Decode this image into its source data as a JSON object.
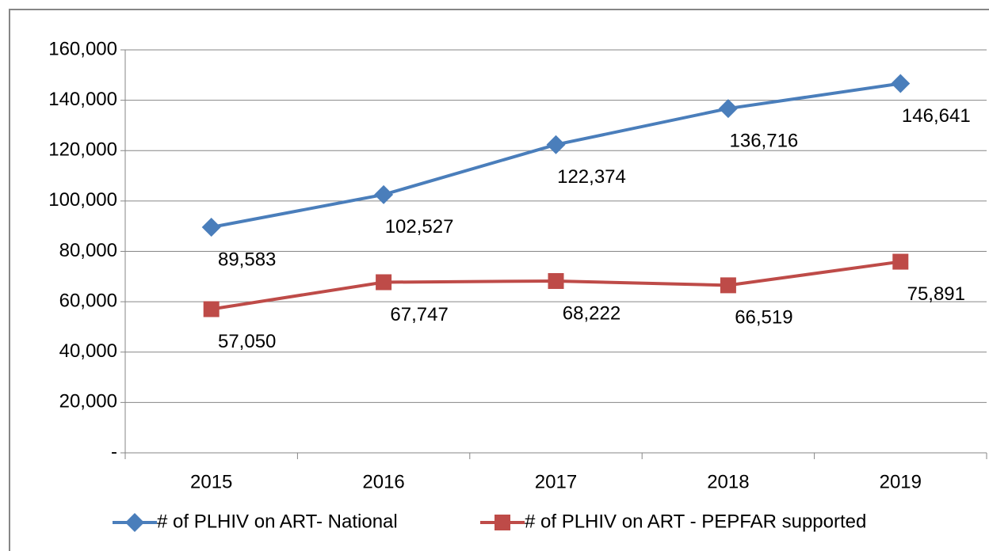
{
  "chart_data": {
    "type": "line",
    "categories": [
      "2015",
      "2016",
      "2017",
      "2018",
      "2019"
    ],
    "series": [
      {
        "name": "# of PLHIV on ART- National",
        "color": "#4a7ebb",
        "marker": "diamond",
        "values": [
          89583,
          102527,
          122374,
          136716,
          146641
        ],
        "value_labels": [
          "89,583",
          "102,527",
          "122,374",
          "136,716",
          "146,641"
        ]
      },
      {
        "name": "# of PLHIV on ART - PEPFAR supported",
        "color": "#be4b48",
        "marker": "square",
        "values": [
          57050,
          67747,
          68222,
          66519,
          75891
        ],
        "value_labels": [
          "57,050",
          "67,747",
          "68,222",
          "66,519",
          "75,891"
        ]
      }
    ],
    "ylim": [
      0,
      160000
    ],
    "yticks": [
      {
        "value": 0,
        "label": "-"
      },
      {
        "value": 20000,
        "label": "20,000"
      },
      {
        "value": 40000,
        "label": "40,000"
      },
      {
        "value": 60000,
        "label": "60,000"
      },
      {
        "value": 80000,
        "label": "80,000"
      },
      {
        "value": 100000,
        "label": "100,000"
      },
      {
        "value": 120000,
        "label": "120,000"
      },
      {
        "value": 140000,
        "label": "140,000"
      },
      {
        "value": 160000,
        "label": "160,000"
      }
    ],
    "grid": true,
    "legend": "bottom"
  }
}
